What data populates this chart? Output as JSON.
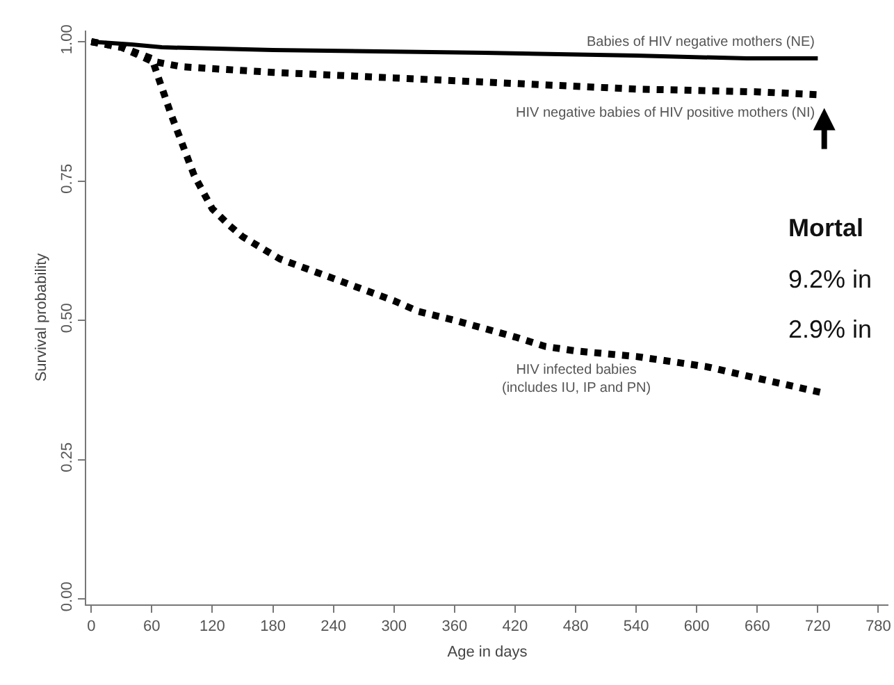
{
  "chart_data": {
    "type": "line",
    "xlabel": "Age in days",
    "ylabel": "Survival probability",
    "xlim": [
      -5,
      790
    ],
    "ylim": [
      -0.01,
      1.02
    ],
    "xticks": [
      0,
      60,
      120,
      180,
      240,
      300,
      360,
      420,
      480,
      540,
      600,
      660,
      720,
      780
    ],
    "yticks": [
      {
        "value": 0,
        "label": "0.00"
      },
      {
        "value": 0.25,
        "label": "0.25"
      },
      {
        "value": 0.5,
        "label": "0.50"
      },
      {
        "value": 0.75,
        "label": "0.75"
      },
      {
        "value": 1,
        "label": "1.00"
      }
    ],
    "marker": "none",
    "series": [
      {
        "name": "Babies of HIV negative mothers (NE)",
        "color": "#000000",
        "line_style": "solid",
        "x": [
          0,
          40,
          70,
          180,
          390,
          540,
          650,
          720
        ],
        "values": [
          1.0,
          0.995,
          0.99,
          0.985,
          0.98,
          0.975,
          0.97,
          0.97
        ]
      },
      {
        "name": "HIV negative babies of HIV positive mothers (NI)",
        "color": "#000000",
        "line_style": "dotted",
        "x": [
          0,
          30,
          60,
          90,
          180,
          300,
          420,
          540,
          660,
          720
        ],
        "values": [
          1.0,
          0.99,
          0.965,
          0.955,
          0.945,
          0.935,
          0.925,
          0.915,
          0.91,
          0.905
        ]
      },
      {
        "name": "HIV infected babies\n(includes IU, IP and PN)",
        "color": "#000000",
        "line_style": "dotted",
        "x": [
          0,
          30,
          60,
          79,
          102,
          120,
          137,
          150,
          187,
          240,
          300,
          324,
          360,
          420,
          450,
          480,
          540,
          609,
          650,
          724
        ],
        "values": [
          1.0,
          0.99,
          0.97,
          0.87,
          0.76,
          0.7,
          0.67,
          0.65,
          0.61,
          0.575,
          0.535,
          0.516,
          0.5,
          0.47,
          0.453,
          0.445,
          0.435,
          0.417,
          0.4,
          0.37
        ]
      }
    ],
    "annotations": [
      "Mortal",
      "9.2% in",
      "2.9% in"
    ]
  }
}
